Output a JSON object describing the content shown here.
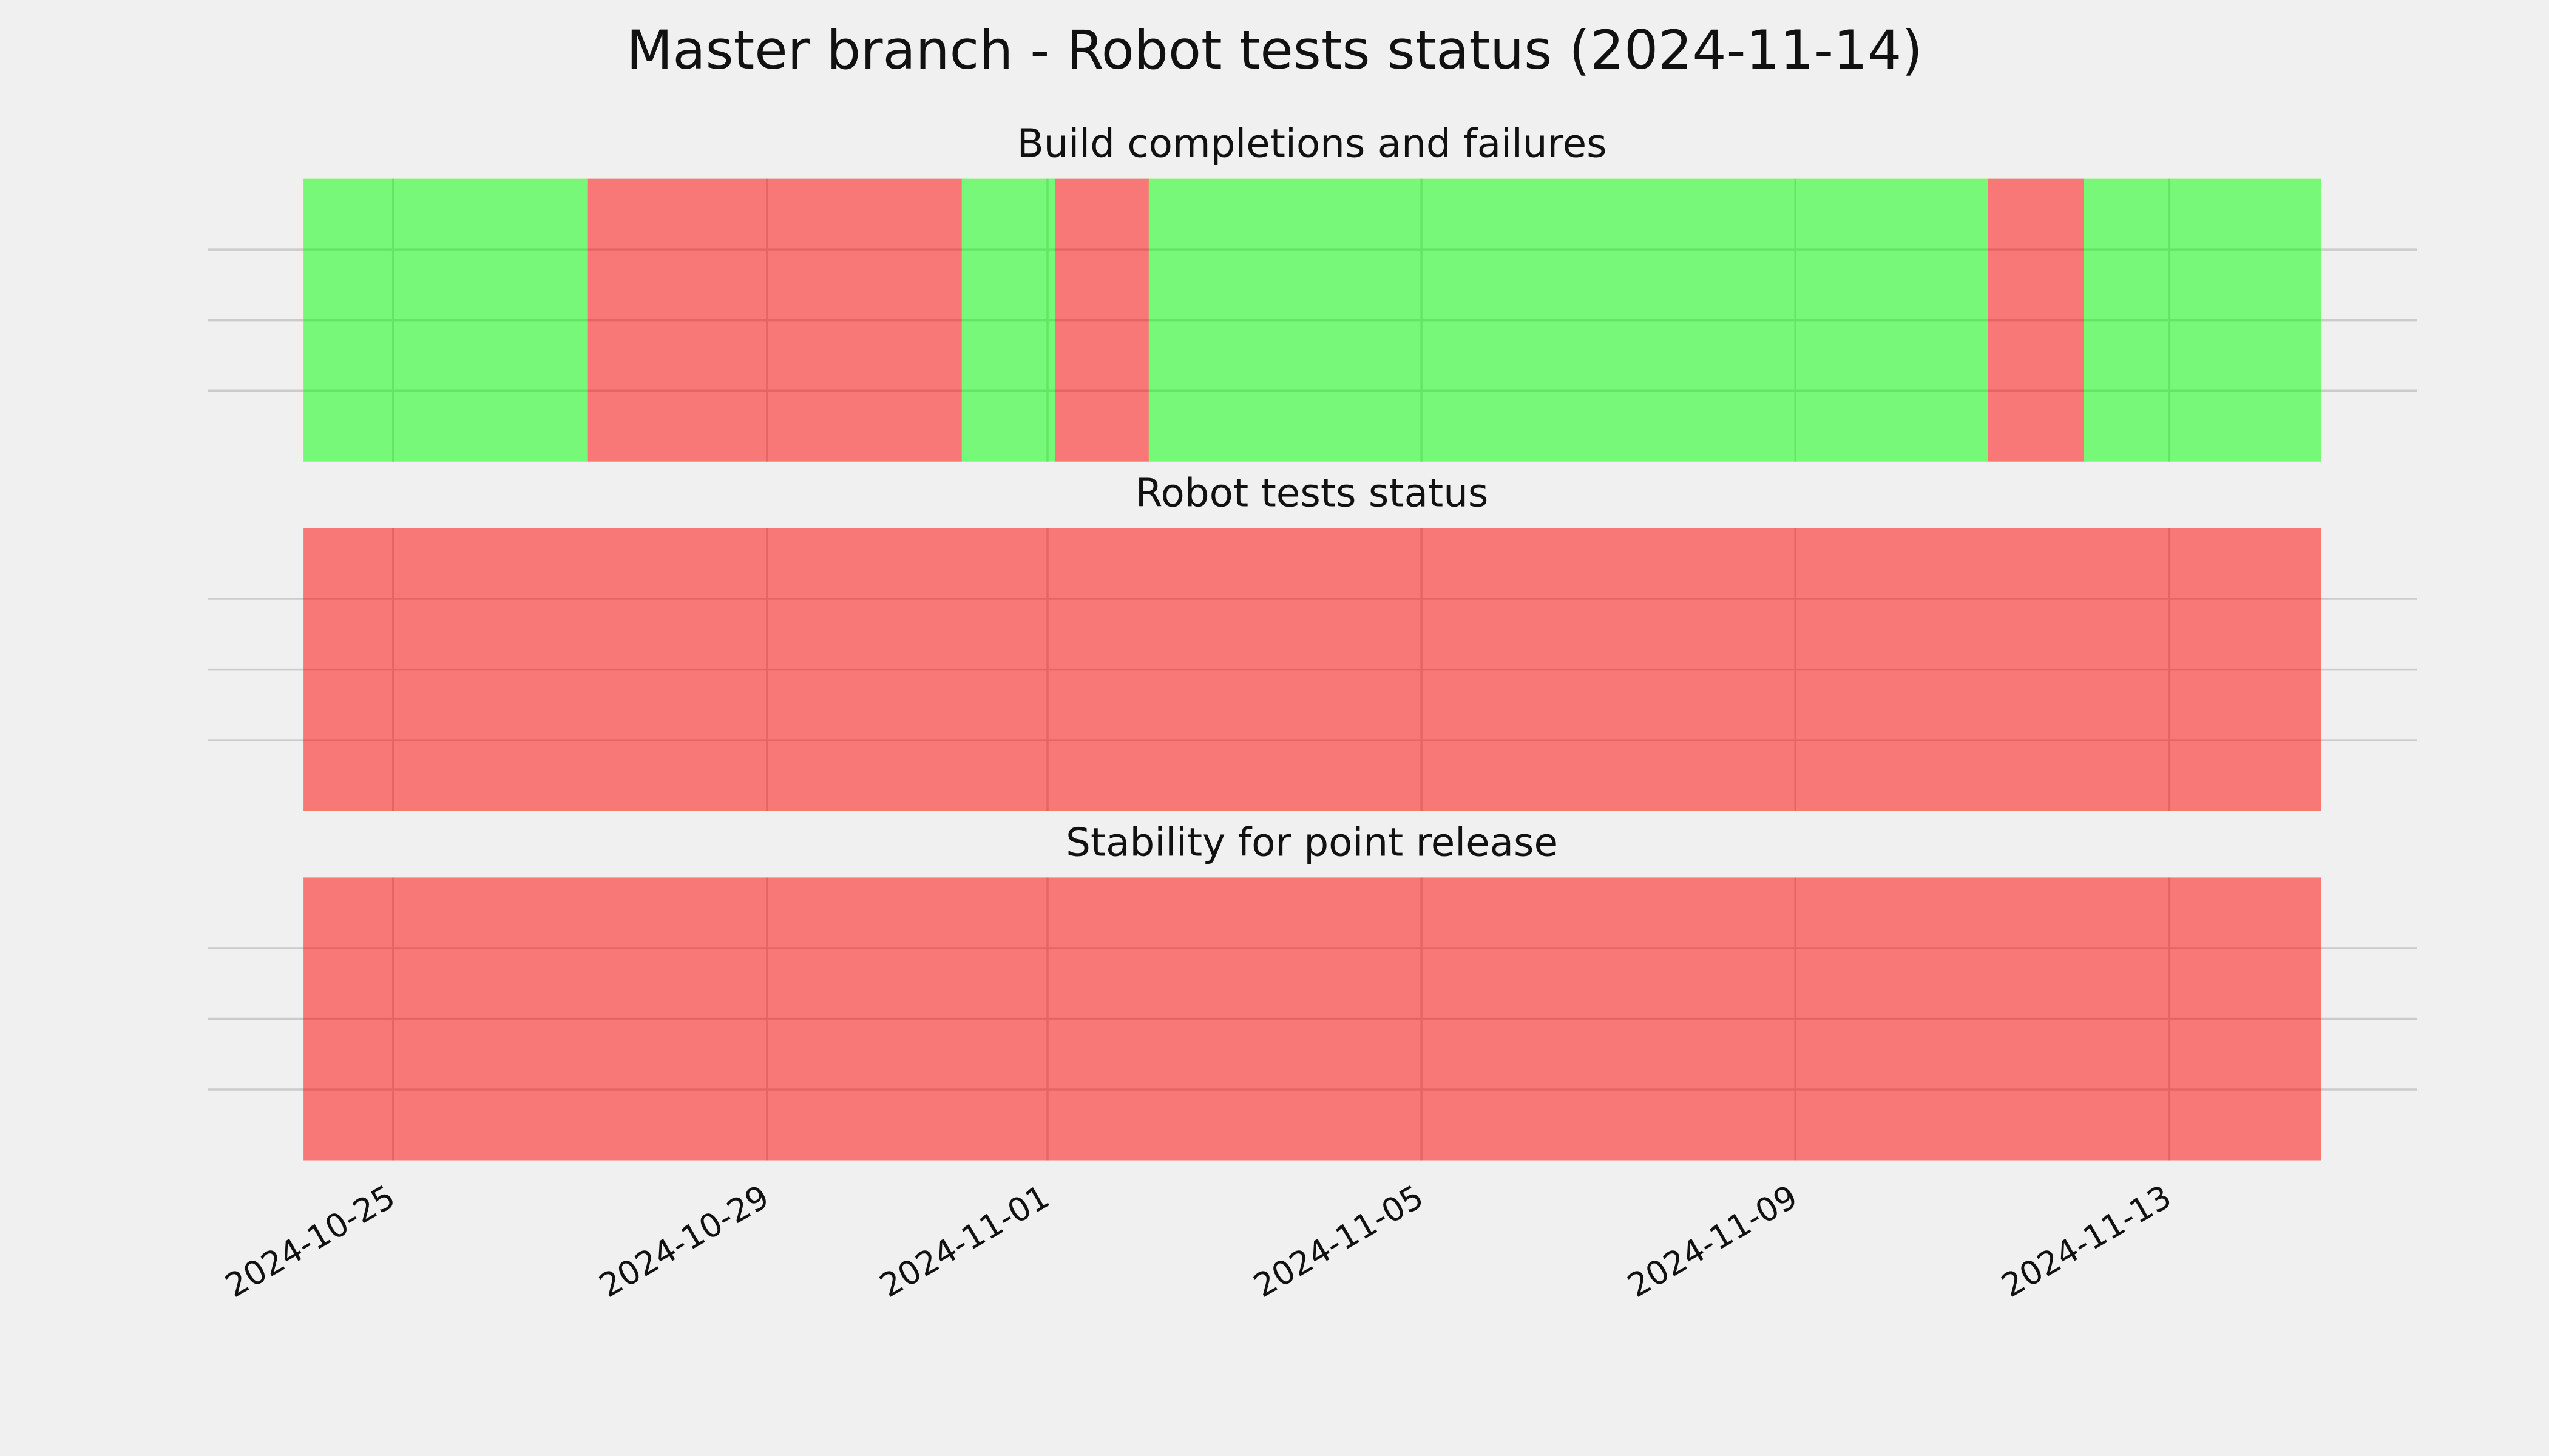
{
  "chart_data": {
    "type": "timeline",
    "title": "Master branch - Robot tests status (2024-11-14)",
    "xlim": [
      "2024-10-23T00:30:00Z",
      "2024-11-15T15:40:00Z"
    ],
    "xticks": [
      "2024-10-25",
      "2024-10-29",
      "2024-11-01",
      "2024-11-05",
      "2024-11-09",
      "2024-11-13"
    ],
    "ylim": [
      0,
      1
    ],
    "yticks": [
      0.25,
      0.5,
      0.75
    ],
    "grid": true,
    "alpha": 0.5,
    "panels": [
      {
        "title": "Build completions and failures",
        "x": [
          "2024-10-24T01:00:00Z",
          "2024-10-27T02:00:00Z",
          "2024-10-31T02:00:00Z",
          "2024-11-01T02:00:00Z",
          "2024-11-02T02:00:00Z",
          "2024-11-11T01:30:00Z",
          "2024-11-12T02:00:00Z",
          "2024-11-14T15:00:00Z"
        ],
        "colors": [
          "#00ff00",
          "#ff0000",
          "#00ff00",
          "#ff0000",
          "#00ff00",
          "#ff0000",
          "#00ff00"
        ]
      },
      {
        "title": "Robot tests status",
        "x": [
          "2024-10-24T01:00:00Z",
          "2024-11-14T15:00:00Z"
        ],
        "colors": [
          "#ff0000"
        ]
      },
      {
        "title": "Stability for point release",
        "x": [
          "2024-10-24T01:00:00Z",
          "2024-11-14T15:00:00Z"
        ],
        "colors": [
          "#ff0000"
        ]
      }
    ]
  }
}
